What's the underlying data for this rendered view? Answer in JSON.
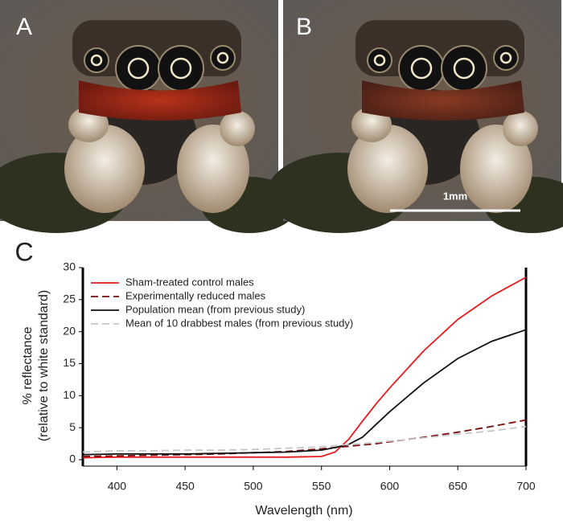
{
  "panel_labels": [
    "A",
    "B",
    "C"
  ],
  "scale_bar": "1mm",
  "chart_data": {
    "type": "line",
    "y_label": [
      "% reflectance",
      "(relative to white standard)"
    ],
    "x_label": "Wavelength (nm)",
    "x": [
      375,
      400,
      425,
      450,
      475,
      500,
      525,
      550,
      560,
      570,
      580,
      590,
      600,
      625,
      650,
      675,
      700
    ],
    "xlim": [
      375,
      700
    ],
    "xticks": [
      400,
      450,
      500,
      550,
      600,
      650,
      700
    ],
    "ylim": [
      -1,
      30
    ],
    "yticks": [
      0,
      5,
      10,
      15,
      20,
      25,
      30
    ],
    "legend": "upper left",
    "series": [
      {
        "name": "Sham-treated control males",
        "color": "#e8191c",
        "dashed": false,
        "values": [
          0.3,
          0.4,
          0.4,
          0.4,
          0.4,
          0.4,
          0.4,
          0.5,
          1.2,
          3.2,
          6,
          8.7,
          11.2,
          17,
          21.9,
          25.6,
          28.5
        ]
      },
      {
        "name": "Experimentally reduced males",
        "color": "#7a0a0a",
        "dashed": true,
        "values": [
          0.5,
          0.6,
          0.7,
          0.8,
          0.9,
          1.1,
          1.3,
          1.7,
          1.9,
          2.1,
          2.3,
          2.5,
          2.8,
          3.5,
          4.3,
          5.2,
          6.2
        ]
      },
      {
        "name": "Population mean (from previous study)",
        "color": "#111111",
        "dashed": false,
        "values": [
          0.8,
          0.9,
          0.9,
          0.9,
          1.0,
          1.1,
          1.2,
          1.5,
          1.9,
          2.4,
          3.5,
          5.5,
          7.5,
          12,
          15.8,
          18.5,
          20.3
        ]
      },
      {
        "name": "Mean of 10 drabbest males (from previous study)",
        "color": "#c8c8c8",
        "dashed": true,
        "values": [
          1.2,
          1.4,
          1.4,
          1.5,
          1.5,
          1.6,
          1.8,
          2.0,
          2.2,
          2.4,
          2.5,
          2.7,
          2.9,
          3.4,
          4.0,
          4.5,
          5.2
        ]
      }
    ]
  }
}
